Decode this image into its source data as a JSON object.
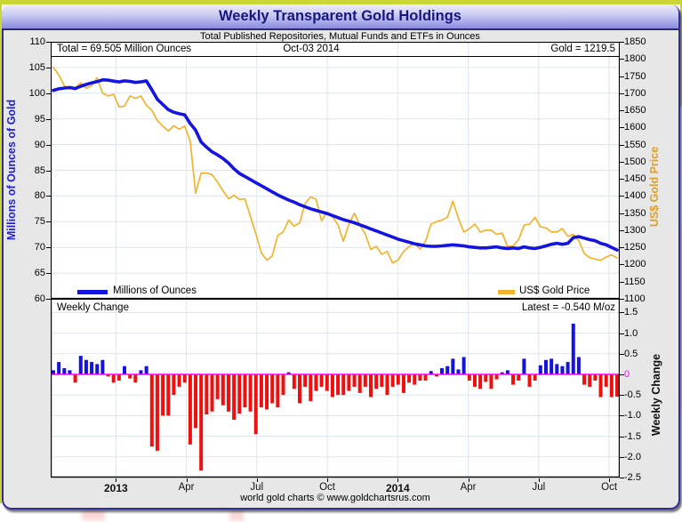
{
  "window": {
    "title": "Weekly Transparent Gold Holdings",
    "subtitle": "Total Published Repositories, Mutual Funds and ETFs in Ounces",
    "footer": "world gold charts © www.goldchartsrus.com"
  },
  "header_annotations": {
    "total": "Total = 69.505 Million Ounces",
    "date": "Oct-03  2014",
    "gold": "Gold = 1219.5"
  },
  "legend": {
    "holdings_label": "Millions of Ounces",
    "gold_label": "US$ Gold Price"
  },
  "panel2": {
    "label": "Weekly Change",
    "latest": "Latest = -0.540 M/oz"
  },
  "axis_titles": {
    "left": "Millions of Ounces of Gold",
    "right": "US$ Gold Price",
    "right2": "Weekly Change"
  },
  "colors": {
    "holdings_line": "#1414e0",
    "gold_line": "#f2b32e",
    "bar_positive": "#1414dd",
    "bar_negative": "#ee0f0f",
    "zero_line": "#ff00ff",
    "grid": "#dce6f0",
    "left_axis_title": "#2020cc",
    "right_axis_title": "#e0a020",
    "title_text": "#16167e"
  },
  "chart_data": {
    "type": "combo",
    "frequency": "weekly",
    "n_points": 104,
    "x_start": "Oct 2012",
    "x_end": "Oct-03 2014",
    "x_ticks": [
      {
        "label": "2013",
        "index": 11.43,
        "bold": true
      },
      {
        "label": "Apr",
        "index": 24.3,
        "bold": false
      },
      {
        "label": "Jul",
        "index": 37.17,
        "bold": false
      },
      {
        "label": "Oct",
        "index": 50.05,
        "bold": false
      },
      {
        "label": "2014",
        "index": 62.93,
        "bold": true
      },
      {
        "label": "Apr",
        "index": 75.8,
        "bold": false
      },
      {
        "label": "Jul",
        "index": 88.68,
        "bold": false
      },
      {
        "label": "Oct",
        "index": 101.56,
        "bold": false
      }
    ],
    "left_axis": {
      "min": 60,
      "max": 110,
      "step": 5,
      "ticks": [
        110,
        105,
        100,
        95,
        90,
        85,
        80,
        75,
        70,
        65,
        60
      ]
    },
    "right_axis": {
      "min": 1100,
      "max": 1850,
      "step": 50,
      "ticks": [
        1850,
        1800,
        1750,
        1700,
        1650,
        1600,
        1550,
        1500,
        1450,
        1400,
        1350,
        1300,
        1250,
        1200,
        1150,
        1100
      ]
    },
    "change_axis": {
      "min": -2.5,
      "max": 1.5,
      "step": 0.5,
      "ticks": [
        1.5,
        1.0,
        0.5,
        0,
        -0.5,
        -1.0,
        -1.5,
        -2.0,
        -2.5
      ]
    },
    "series": [
      {
        "name": "Millions of Ounces",
        "type": "line",
        "axis": "left",
        "color": "#1414e0",
        "width": 3.6,
        "values": [
          100.55,
          100.85,
          101.0,
          101.1,
          100.9,
          101.35,
          101.7,
          102.0,
          102.25,
          102.6,
          102.55,
          102.35,
          102.2,
          102.4,
          102.3,
          102.1,
          102.2,
          102.4,
          100.65,
          98.8,
          97.8,
          96.8,
          96.3,
          96.0,
          95.8,
          94.1,
          92.8,
          90.5,
          89.5,
          88.6,
          88.0,
          87.3,
          86.4,
          85.3,
          84.4,
          83.8,
          83.2,
          82.6,
          82.0,
          81.4,
          80.8,
          80.2,
          79.7,
          79.2,
          78.8,
          78.3,
          77.9,
          77.5,
          77.2,
          76.9,
          76.6,
          76.2,
          75.8,
          75.4,
          75.1,
          74.8,
          74.4,
          74.0,
          73.6,
          73.2,
          72.8,
          72.4,
          72.0,
          71.6,
          71.3,
          71.0,
          70.7,
          70.5,
          70.3,
          70.2,
          70.2,
          70.3,
          70.4,
          70.5,
          70.4,
          70.3,
          70.1,
          70.0,
          69.9,
          69.9,
          70.0,
          70.1,
          69.9,
          69.8,
          69.9,
          69.8,
          70.1,
          69.9,
          69.8,
          70.0,
          70.3,
          70.6,
          70.8,
          70.6,
          70.8,
          71.9,
          72.1,
          71.8,
          71.5,
          71.3,
          70.8,
          70.5,
          70.0,
          69.505
        ]
      },
      {
        "name": "US$ Gold Price",
        "type": "line",
        "axis": "right",
        "color": "#f2b32e",
        "width": 1.7,
        "values": [
          1775,
          1753,
          1722,
          1712,
          1716,
          1730,
          1714,
          1722,
          1745,
          1700,
          1692,
          1697,
          1660,
          1662,
          1692,
          1685,
          1692,
          1665,
          1650,
          1620,
          1604,
          1590,
          1605,
          1595,
          1604,
          1560,
          1408,
          1467,
          1467,
          1462,
          1440,
          1415,
          1392,
          1402,
          1390,
          1392,
          1340,
          1290,
          1234,
          1213,
          1225,
          1285,
          1295,
          1330,
          1312,
          1322,
          1378,
          1398,
          1390,
          1328,
          1352,
          1340,
          1316,
          1268,
          1318,
          1350,
          1316,
          1288,
          1244,
          1253,
          1230,
          1238,
          1204,
          1214,
          1238,
          1252,
          1262,
          1245,
          1268,
          1318,
          1325,
          1330,
          1338,
          1385,
          1335,
          1295,
          1304,
          1318,
          1295,
          1300,
          1300,
          1288,
          1292,
          1252,
          1255,
          1272,
          1315,
          1318,
          1338,
          1310,
          1307,
          1295,
          1295,
          1305,
          1282,
          1288,
          1270,
          1232,
          1220,
          1216,
          1212,
          1222,
          1228,
          1219.5
        ]
      },
      {
        "name": "Weekly Change",
        "type": "bar",
        "axis": "change",
        "pos_color": "#1414dd",
        "neg_color": "#ee0f0f",
        "values": [
          0.1,
          0.3,
          0.15,
          0.1,
          -0.2,
          0.45,
          0.35,
          0.3,
          0.25,
          0.35,
          -0.05,
          -0.2,
          -0.15,
          0.2,
          -0.1,
          -0.2,
          0.1,
          0.2,
          -1.75,
          -1.85,
          -1.0,
          -1.0,
          -0.5,
          -0.3,
          -0.2,
          -1.7,
          -1.3,
          -2.33,
          -0.97,
          -0.9,
          -0.6,
          -0.75,
          -0.9,
          -1.1,
          -0.95,
          -0.8,
          -0.9,
          -1.45,
          -0.8,
          -0.85,
          -0.7,
          -0.8,
          -0.5,
          0.05,
          -0.35,
          -0.7,
          -0.3,
          -0.65,
          -0.4,
          -0.3,
          -0.4,
          -0.55,
          -0.5,
          -0.5,
          -0.4,
          -0.3,
          -0.45,
          -0.3,
          -0.55,
          -0.35,
          -0.3,
          -0.5,
          -0.3,
          -0.25,
          -0.45,
          -0.2,
          -0.25,
          -0.15,
          -0.15,
          0.08,
          -0.05,
          0.15,
          0.2,
          0.38,
          0.12,
          0.42,
          -0.15,
          -0.3,
          -0.35,
          -0.18,
          -0.35,
          -0.12,
          0.05,
          0.1,
          -0.25,
          -0.15,
          0.38,
          -0.3,
          -0.15,
          0.22,
          0.35,
          0.38,
          0.25,
          0.2,
          0.3,
          1.23,
          0.42,
          -0.25,
          -0.3,
          -0.15,
          -0.55,
          -0.3,
          -0.55,
          -0.54
        ]
      }
    ]
  }
}
